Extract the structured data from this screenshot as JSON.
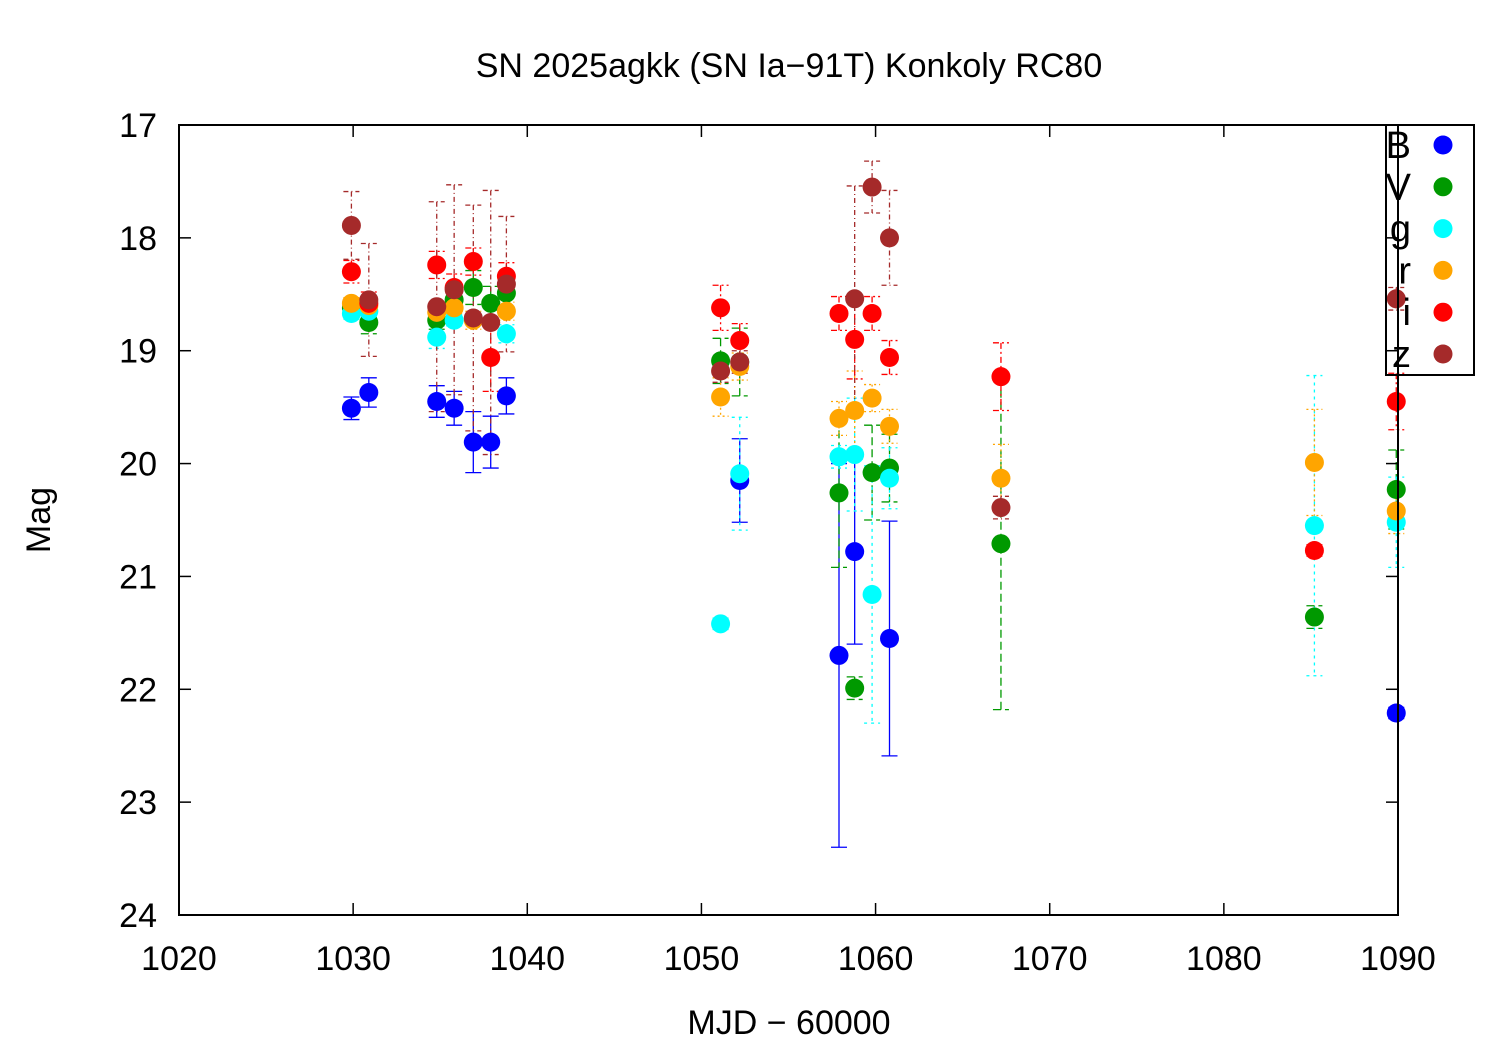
{
  "chart_data": {
    "type": "scatter",
    "title": "SN 2025agkk (SN Ia−91T) Konkoly RC80",
    "xlabel": "MJD − 60000",
    "ylabel": "Mag",
    "xlim": [
      1020,
      1090
    ],
    "ylim": [
      24,
      17
    ],
    "y_inverted": true,
    "xticks": [
      "1020",
      "1030",
      "1040",
      "1050",
      "1060",
      "1070",
      "1080",
      "1090"
    ],
    "yticks": [
      "17",
      "18",
      "19",
      "20",
      "21",
      "22",
      "23",
      "24"
    ],
    "legend_position": "top-right",
    "series": [
      {
        "name": "B",
        "color": "#0000ff",
        "dash": "none",
        "points": [
          [
            1029.9,
            19.51,
            0.1
          ],
          [
            1030.9,
            19.37,
            0.13
          ],
          [
            1034.8,
            19.45,
            0.14
          ],
          [
            1035.8,
            19.51,
            0.15
          ],
          [
            1036.9,
            19.81,
            0.27
          ],
          [
            1037.9,
            19.81,
            0.23
          ],
          [
            1038.8,
            19.4,
            0.16
          ],
          [
            1052.2,
            20.15,
            0.37
          ],
          [
            1057.9,
            21.7,
            1.7
          ],
          [
            1058.8,
            20.78,
            0.82
          ],
          [
            1060.8,
            21.55,
            1.04
          ],
          [
            1089.9,
            22.21,
            0.05
          ]
        ]
      },
      {
        "name": "V",
        "color": "#009900",
        "dash": "8,4",
        "points": [
          [
            1029.9,
            18.62,
            0.08
          ],
          [
            1030.9,
            18.75,
            0.1
          ],
          [
            1034.8,
            18.73,
            0.08
          ],
          [
            1035.8,
            18.55,
            0.1
          ],
          [
            1036.9,
            18.44,
            0.15
          ],
          [
            1037.9,
            18.58,
            0.15
          ],
          [
            1038.8,
            18.49,
            0.12
          ],
          [
            1051.1,
            19.09,
            0.2
          ],
          [
            1052.2,
            19.1,
            0.3
          ],
          [
            1057.9,
            20.26,
            0.66
          ],
          [
            1058.8,
            21.99,
            0.1
          ],
          [
            1059.8,
            20.08,
            0.42
          ],
          [
            1060.8,
            20.04,
            0.3
          ],
          [
            1067.2,
            20.71,
            1.47
          ],
          [
            1085.2,
            21.36,
            0.1
          ],
          [
            1089.9,
            20.23,
            0.35
          ]
        ]
      },
      {
        "name": "g",
        "color": "#00ffff",
        "dash": "3,4",
        "points": [
          [
            1029.9,
            18.67,
            0.05
          ],
          [
            1030.9,
            18.65,
            0.05
          ],
          [
            1034.8,
            18.88,
            0.1
          ],
          [
            1035.8,
            18.73,
            0.05
          ],
          [
            1038.8,
            18.85,
            0.08
          ],
          [
            1051.1,
            21.42,
            0.05
          ],
          [
            1052.2,
            20.09,
            0.5
          ],
          [
            1057.9,
            19.94,
            0.1
          ],
          [
            1058.8,
            19.92,
            0.5
          ],
          [
            1059.8,
            21.16,
            1.14
          ],
          [
            1060.8,
            20.13,
            0.27
          ],
          [
            1085.2,
            20.55,
            1.33
          ],
          [
            1089.9,
            20.52,
            0.4
          ]
        ]
      },
      {
        "name": "r",
        "color": "#ffa500",
        "dash": "2,3",
        "points": [
          [
            1029.9,
            18.58,
            0.05
          ],
          [
            1030.9,
            18.6,
            0.05
          ],
          [
            1034.8,
            18.66,
            0.05
          ],
          [
            1035.8,
            18.62,
            0.05
          ],
          [
            1036.9,
            18.73,
            0.08
          ],
          [
            1038.8,
            18.65,
            0.08
          ],
          [
            1051.1,
            19.41,
            0.17
          ],
          [
            1052.2,
            19.14,
            0.12
          ],
          [
            1057.9,
            19.6,
            0.15
          ],
          [
            1058.8,
            19.53,
            0.35
          ],
          [
            1059.8,
            19.42,
            0.12
          ],
          [
            1060.8,
            19.67,
            0.15
          ],
          [
            1067.2,
            20.13,
            0.3
          ],
          [
            1085.2,
            19.99,
            0.47
          ],
          [
            1089.9,
            20.42,
            0.2
          ]
        ]
      },
      {
        "name": "i",
        "color": "#ff0000",
        "dash": "6,3,2,3",
        "points": [
          [
            1029.9,
            18.3,
            0.1
          ],
          [
            1030.9,
            18.58,
            0.1
          ],
          [
            1034.8,
            18.24,
            0.12
          ],
          [
            1035.8,
            18.44,
            0.12
          ],
          [
            1036.9,
            18.21,
            0.12
          ],
          [
            1037.9,
            19.06,
            0.3
          ],
          [
            1038.8,
            18.34,
            0.12
          ],
          [
            1051.1,
            18.62,
            0.2
          ],
          [
            1052.2,
            18.91,
            0.15
          ],
          [
            1057.9,
            18.67,
            0.15
          ],
          [
            1058.8,
            18.9,
            0.35
          ],
          [
            1059.8,
            18.67,
            0.15
          ],
          [
            1060.8,
            19.06,
            0.15
          ],
          [
            1067.2,
            19.23,
            0.3
          ],
          [
            1085.2,
            20.77,
            0.05
          ],
          [
            1089.9,
            19.45,
            0.25
          ]
        ]
      },
      {
        "name": "z",
        "color": "#a52a2a",
        "dash": "5,3,1,3",
        "points": [
          [
            1029.9,
            17.89,
            0.3
          ],
          [
            1030.9,
            18.55,
            0.5
          ],
          [
            1034.8,
            18.61,
            0.93
          ],
          [
            1035.8,
            18.46,
            0.93
          ],
          [
            1036.9,
            18.71,
            1.0
          ],
          [
            1037.9,
            18.75,
            1.17
          ],
          [
            1038.8,
            18.41,
            0.6
          ],
          [
            1051.1,
            19.18,
            0.1
          ],
          [
            1052.2,
            19.1,
            0.1
          ],
          [
            1058.8,
            18.54,
            1.0
          ],
          [
            1059.8,
            17.55,
            0.23
          ],
          [
            1060.8,
            18.0,
            0.42
          ],
          [
            1067.2,
            20.39,
            0.1
          ],
          [
            1089.9,
            18.54,
            0.1
          ]
        ]
      }
    ]
  }
}
